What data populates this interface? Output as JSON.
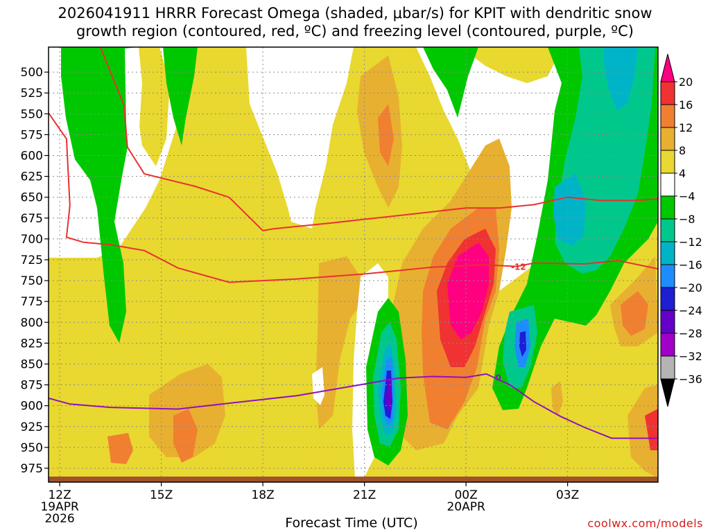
{
  "title_line1": "2026041911 HRRR Forecast Omega (shaded, μbar/s) for KPIT with dendritic snow",
  "title_line2": "growth region (contoured, red, ºC) and freezing level (contoured, purple, ºC)",
  "xlabel": "Forecast Time (UTC)",
  "credit": "coolwx.com/models",
  "chart_data": {
    "type": "time-height cross section",
    "y_ticks": [
      500,
      525,
      550,
      575,
      600,
      625,
      650,
      675,
      700,
      725,
      750,
      775,
      800,
      825,
      850,
      875,
      900,
      925,
      950,
      975
    ],
    "y_range": [
      470,
      985
    ],
    "x_range": [
      11.67,
      29.67
    ],
    "x_ticks": [
      {
        "hour": 12,
        "label": "12Z",
        "date1": "19APR",
        "date2": "2026"
      },
      {
        "hour": 15,
        "label": "15Z",
        "date1": "",
        "date2": ""
      },
      {
        "hour": 18,
        "label": "18Z",
        "date1": "",
        "date2": ""
      },
      {
        "hour": 21,
        "label": "21Z",
        "date1": "",
        "date2": ""
      },
      {
        "hour": 24,
        "label": "00Z",
        "date1": "20APR",
        "date2": ""
      },
      {
        "hour": 27,
        "label": "03Z",
        "date1": "",
        "date2": ""
      }
    ],
    "colorbar": {
      "labels": [
        "20",
        "16",
        "12",
        "8",
        "4",
        "−4",
        "−8",
        "−12",
        "−16",
        "−20",
        "−24",
        "−28",
        "−32",
        "−36"
      ],
      "colors": [
        "#ff0080",
        "#f03232",
        "#f08030",
        "#e8b030",
        "#e8d830",
        "#ffffff",
        "#00c800",
        "#00c88c",
        "#00b4c8",
        "#1e8cff",
        "#1e1ed2",
        "#6400c8",
        "#a000c8",
        "#b4b4b4",
        "#000000"
      ]
    },
    "contours": [
      {
        "label": "-12",
        "color": "#e83030",
        "points": [
          [
            11.67,
            549
          ],
          [
            12.2,
            580
          ],
          [
            12.3,
            660
          ],
          [
            12.2,
            698
          ],
          [
            12.7,
            704
          ],
          [
            13.5,
            707
          ],
          [
            14.5,
            714
          ],
          [
            15.5,
            735
          ],
          [
            17,
            752
          ],
          [
            19,
            748
          ],
          [
            21,
            742
          ],
          [
            23,
            734
          ],
          [
            24.5,
            731
          ],
          [
            25.5,
            733
          ],
          [
            26,
            729
          ],
          [
            27.5,
            730
          ],
          [
            28.5,
            726
          ],
          [
            29.67,
            736
          ]
        ]
      },
      {
        "label": "",
        "color": "#e83030",
        "points": [
          [
            13.2,
            470
          ],
          [
            13.9,
            540
          ],
          [
            14,
            590
          ],
          [
            14.5,
            622
          ],
          [
            16,
            637
          ],
          [
            17,
            650
          ],
          [
            18,
            690
          ],
          [
            18.3,
            688
          ],
          [
            20,
            681
          ],
          [
            22,
            672
          ],
          [
            24,
            663
          ],
          [
            25,
            663
          ],
          [
            26,
            659
          ],
          [
            27,
            650
          ],
          [
            28,
            654
          ],
          [
            29,
            654
          ],
          [
            29.67,
            652
          ]
        ]
      },
      {
        "label": "0",
        "color": "#9010c0",
        "points": [
          [
            11.67,
            891
          ],
          [
            12.3,
            898
          ],
          [
            13.5,
            902
          ],
          [
            15.5,
            904
          ],
          [
            17,
            897
          ],
          [
            19,
            888
          ],
          [
            21,
            874
          ],
          [
            22,
            867
          ],
          [
            23,
            865
          ],
          [
            24,
            866
          ],
          [
            24.6,
            862
          ],
          [
            25.3,
            875
          ],
          [
            26,
            895
          ],
          [
            26.8,
            913
          ],
          [
            27.5,
            926
          ],
          [
            28.3,
            939
          ],
          [
            29.67,
            939
          ]
        ]
      }
    ]
  }
}
